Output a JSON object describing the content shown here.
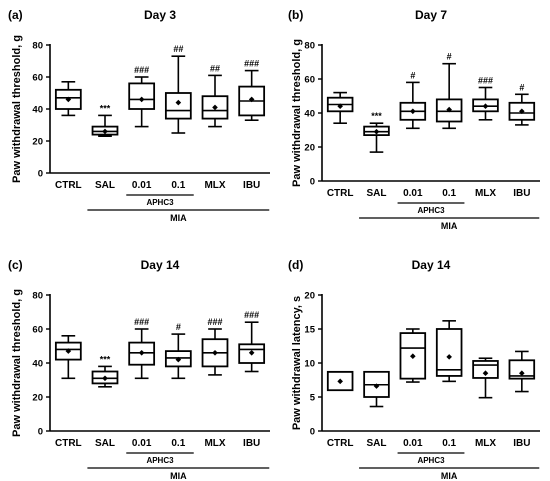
{
  "chart_data": [
    {
      "type": "box",
      "panel_label": "(a)",
      "title": "Day 3",
      "ylabel": "Paw withdrawal threshold, g",
      "ylim": [
        0,
        80
      ],
      "yticks": [
        "0",
        "20",
        "40",
        "60",
        "80"
      ],
      "categories": [
        "CTRL",
        "SAL",
        "0.01",
        "0.1",
        "MLX",
        "IBU"
      ],
      "boxes": [
        {
          "min": 36,
          "q1": 40,
          "median": 47,
          "q3": 52,
          "max": 57,
          "mean": 46
        },
        {
          "min": 23,
          "q1": 24,
          "median": 26,
          "q3": 29,
          "max": 36,
          "mean": 26
        },
        {
          "min": 29,
          "q1": 40,
          "median": 46,
          "q3": 56,
          "max": 60,
          "mean": 46
        },
        {
          "min": 25,
          "q1": 34,
          "median": 39,
          "q3": 50,
          "max": 73,
          "mean": 44
        },
        {
          "min": 29,
          "q1": 34,
          "median": 39,
          "q3": 48,
          "max": 61,
          "mean": 41
        },
        {
          "min": 33,
          "q1": 36,
          "median": 45,
          "q3": 54,
          "max": 64,
          "mean": 46
        }
      ],
      "annotations": [
        "",
        "***",
        "###",
        "##",
        "##",
        "###"
      ],
      "group_labels": {
        "subgroup": "APHC3",
        "group": "MIA"
      }
    },
    {
      "type": "box",
      "panel_label": "(b)",
      "title": "Day 7",
      "ylabel": "Paw withdrawal threshold, g",
      "ylim": [
        0,
        80
      ],
      "yticks": [
        "0",
        "20",
        "40",
        "60",
        "80"
      ],
      "categories": [
        "CTRL",
        "SAL",
        "0.01",
        "0.1",
        "MLX",
        "IBU"
      ],
      "boxes": [
        {
          "min": 34,
          "q1": 41,
          "median": 45,
          "q3": 49,
          "max": 52,
          "mean": 44
        },
        {
          "min": 17,
          "q1": 27,
          "median": 29,
          "q3": 32,
          "max": 34,
          "mean": 29
        },
        {
          "min": 31,
          "q1": 36,
          "median": 41,
          "q3": 46,
          "max": 58,
          "mean": 41
        },
        {
          "min": 31,
          "q1": 35,
          "median": 41,
          "q3": 48,
          "max": 69,
          "mean": 42
        },
        {
          "min": 36,
          "q1": 41,
          "median": 44,
          "q3": 48,
          "max": 55,
          "mean": 44
        },
        {
          "min": 33,
          "q1": 36,
          "median": 40,
          "q3": 46,
          "max": 51,
          "mean": 41
        }
      ],
      "annotations": [
        "",
        "***",
        "#",
        "#",
        "###",
        "#"
      ],
      "group_labels": {
        "subgroup": "APHC3",
        "group": "MIA"
      }
    },
    {
      "type": "box",
      "panel_label": "(c)",
      "title": "Day 14",
      "ylabel": "Paw withdrawal threshold, g",
      "ylim": [
        0,
        80
      ],
      "yticks": [
        "0",
        "20",
        "40",
        "60",
        "80"
      ],
      "categories": [
        "CTRL",
        "SAL",
        "0.01",
        "0.1",
        "MLX",
        "IBU"
      ],
      "boxes": [
        {
          "min": 31,
          "q1": 42,
          "median": 48,
          "q3": 52,
          "max": 56,
          "mean": 47
        },
        {
          "min": 26,
          "q1": 28,
          "median": 31,
          "q3": 35,
          "max": 38,
          "mean": 31
        },
        {
          "min": 31,
          "q1": 39,
          "median": 46,
          "q3": 52,
          "max": 60,
          "mean": 46
        },
        {
          "min": 31,
          "q1": 38,
          "median": 43,
          "q3": 47,
          "max": 57,
          "mean": 42
        },
        {
          "min": 33,
          "q1": 38,
          "median": 46,
          "q3": 54,
          "max": 60,
          "mean": 46
        },
        {
          "min": 35,
          "q1": 40,
          "median": 48,
          "q3": 51,
          "max": 64,
          "mean": 46
        }
      ],
      "annotations": [
        "",
        "***",
        "###",
        "#",
        "###",
        "###"
      ],
      "group_labels": {
        "subgroup": "APHC3",
        "group": "MIA"
      }
    },
    {
      "type": "box",
      "panel_label": "(d)",
      "title": "Day 14",
      "ylabel": "Paw withdrawal latency, s",
      "ylim": [
        0,
        20
      ],
      "yticks": [
        "0",
        "5",
        "10",
        "15",
        "20"
      ],
      "categories": [
        "CTRL",
        "SAL",
        "0.01",
        "0.1",
        "MLX",
        "IBU"
      ],
      "boxes": [
        {
          "min": 6,
          "q1": 6,
          "median": 8.7,
          "q3": 8.7,
          "max": 8.7,
          "mean": 7.3
        },
        {
          "min": 3.6,
          "q1": 5,
          "median": 6.8,
          "q3": 8.7,
          "max": 8.7,
          "mean": 6.6
        },
        {
          "min": 7.2,
          "q1": 7.7,
          "median": 12.2,
          "q3": 14.4,
          "max": 15,
          "mean": 11
        },
        {
          "min": 7.3,
          "q1": 8.1,
          "median": 9,
          "q3": 15,
          "max": 16.2,
          "mean": 10.9
        },
        {
          "min": 4.9,
          "q1": 7.8,
          "median": 9.7,
          "q3": 10.3,
          "max": 10.7,
          "mean": 8.5
        },
        {
          "min": 5.8,
          "q1": 7.7,
          "median": 8.1,
          "q3": 10.4,
          "max": 11.7,
          "mean": 8.5
        }
      ],
      "annotations": [
        "",
        "",
        "",
        "",
        "",
        ""
      ],
      "group_labels": {
        "subgroup": "APHC3",
        "group": "MIA"
      }
    }
  ]
}
